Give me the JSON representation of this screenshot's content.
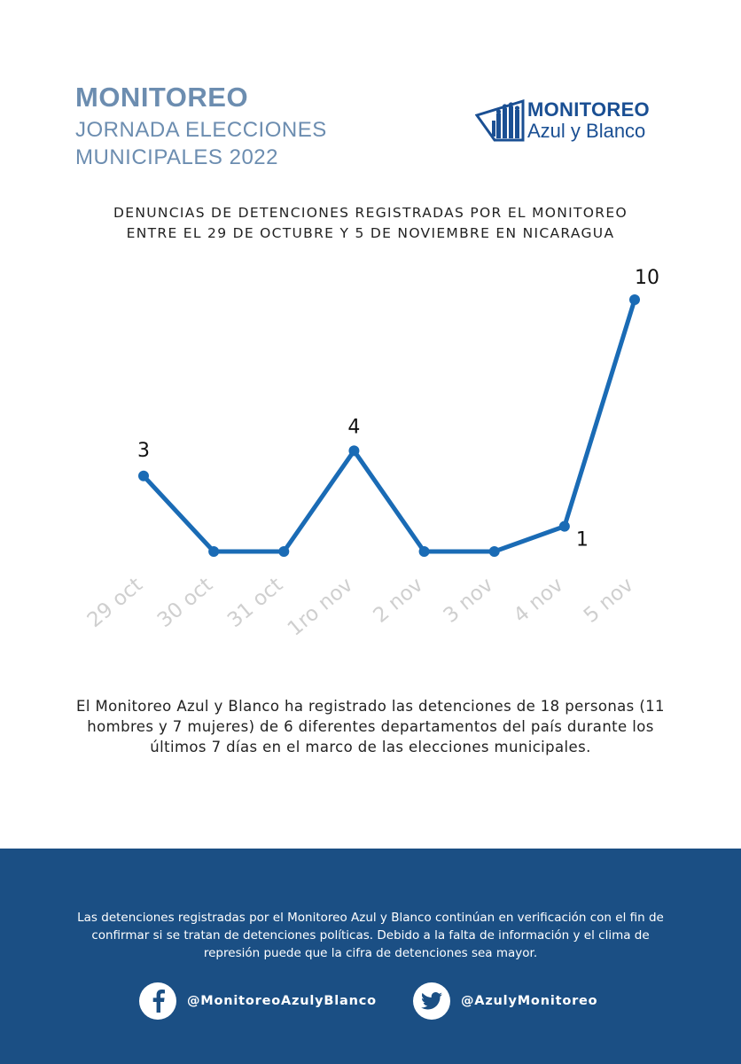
{
  "header": {
    "title": "MONITOREO",
    "subtitle_line1": "JORNADA ELECCIONES",
    "subtitle_line2": "MUNICIPALES 2022"
  },
  "logo": {
    "line1": "MONITOREO",
    "line2": "Azul y Blanco"
  },
  "chart_title": {
    "line1": "DENUNCIAS DE DETENCIONES REGISTRADAS POR EL MONITOREO",
    "line2": "ENTRE EL 29 DE OCTUBRE Y 5 DE NOVIEMBRE EN NICARAGUA"
  },
  "chart_data": {
    "type": "line",
    "categories": [
      "29 oct",
      "30 oct",
      "31 oct",
      "1ro nov",
      "2 nov",
      "3 nov",
      "4 nov",
      "5 nov"
    ],
    "values": [
      3,
      0,
      0,
      4,
      0,
      0,
      1,
      10
    ],
    "data_labels": [
      {
        "index": 0,
        "text": "3"
      },
      {
        "index": 3,
        "text": "4"
      },
      {
        "index": 6,
        "text": "1"
      },
      {
        "index": 7,
        "text": "10"
      }
    ],
    "ylim": [
      0,
      10
    ],
    "grid": false,
    "line_color": "#1a6bb5",
    "tick_label_color": "#cfcfcf"
  },
  "summary": "El Monitoreo Azul y Blanco ha registrado las detenciones de 18 personas (11 hombres y 7 mujeres) de 6 diferentes departamentos del país durante los últimos 7 días en el marco de las elecciones municipales.",
  "footer": {
    "note": "Las detenciones registradas por el Monitoreo Azul y Blanco continúan en verificación con el fin de confirmar si se tratan de detenciones políticas. Debido a la falta de información y el clima de represión puede que la cifra de detenciones sea mayor.",
    "facebook_handle": "@MonitoreoAzulyBlanco",
    "twitter_handle": "@AzulyMonitoreo",
    "background": "#1b4f84"
  }
}
